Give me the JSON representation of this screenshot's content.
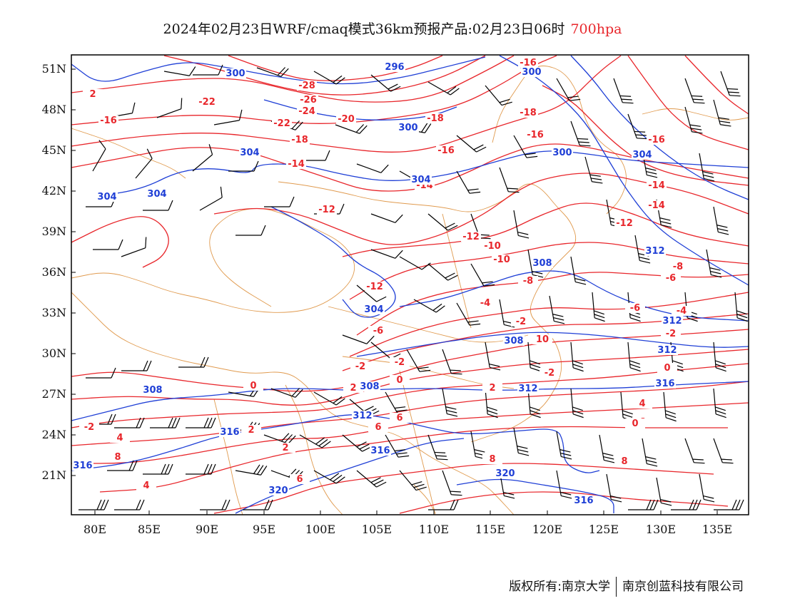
{
  "title": {
    "main": "2024年02月23日WRF/cmaq模式36km预报产品:02月23日06时",
    "level": "700hpa"
  },
  "colors": {
    "temperature": "#e8262b",
    "geopotential": "#1f3fd6",
    "wind": "#000000",
    "border": "#e09a4e",
    "frame": "#000000"
  },
  "axes": {
    "lon_ticks": [
      "80E",
      "85E",
      "90E",
      "95E",
      "100E",
      "105E",
      "110E",
      "115E",
      "120E",
      "125E",
      "130E",
      "135E"
    ],
    "lat_ticks": [
      "51N",
      "48N",
      "45N",
      "42N",
      "39N",
      "36N",
      "33N",
      "30N",
      "27N",
      "24N",
      "21N"
    ]
  },
  "contour_labels": {
    "temperature": [
      "-16",
      "-16",
      "-22",
      "-28",
      "-26",
      "-24",
      "-22",
      "-20",
      "-18",
      "-16",
      "-18",
      "-16",
      "-14",
      "-14",
      "-12",
      "-16",
      "-18",
      "-16",
      "-14",
      "-14",
      "-12",
      "-12",
      "-10",
      "-10",
      "-12",
      "-8",
      "-8",
      "-6",
      "-6",
      "-4",
      "-6",
      "-2",
      "-4",
      "-2",
      "-2",
      "-2",
      "-2",
      "0",
      "0",
      "0",
      "2",
      "2",
      "2",
      "4",
      "4",
      "2",
      "4",
      "6",
      "6",
      "6",
      "8",
      "8",
      "6",
      "8",
      "10",
      "-2",
      "0",
      "2"
    ],
    "geopotential": [
      "300",
      "296",
      "300",
      "304",
      "300",
      "304",
      "304",
      "300",
      "304",
      "308",
      "304",
      "308",
      "312",
      "312",
      "308",
      "312",
      "312",
      "316",
      "316",
      "316",
      "320",
      "320",
      "316",
      "316",
      "312",
      "304",
      "308"
    ]
  },
  "footer": {
    "left": "版权所有:南京大学",
    "right": "南京创蓝科技有限公司"
  }
}
